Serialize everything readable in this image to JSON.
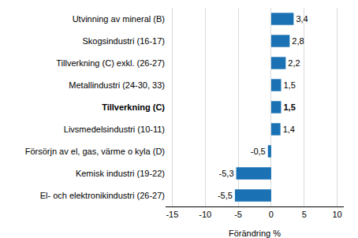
{
  "chart_data": {
    "type": "bar",
    "orientation": "horizontal",
    "categories": [
      "Utvinning av mineral (B)",
      "Skogsindustri (16-17)",
      "Tillverkning (C) exkl. (26-27)",
      "Metallindustri (24-30, 33)",
      "Tillverkning (C)",
      "Livsmedelsindustri (10-11)",
      "Försörjn av el, gas, värme o kyla (D)",
      "Kemisk industri (19-22)",
      "El- och elektronikindustri (26-27)"
    ],
    "values": [
      3.4,
      2.8,
      2.2,
      1.5,
      1.5,
      1.4,
      -0.5,
      -5.3,
      -5.5
    ],
    "value_labels": [
      "3,4",
      "2,8",
      "2,2",
      "1,5",
      "1,5",
      "1,4",
      "-0,5",
      "-5,3",
      "-5,5"
    ],
    "data_labels": true,
    "color": "#1a72b4",
    "x_label": "Förändring %",
    "xlim": [
      -16,
      11
    ],
    "xticks": [
      -15,
      -10,
      -5,
      0,
      5,
      10
    ],
    "grid": true
  }
}
